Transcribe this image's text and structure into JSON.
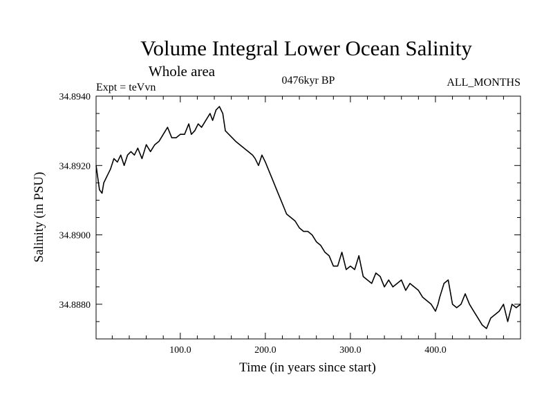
{
  "chart_data": {
    "type": "line",
    "title": "Volume Integral Lower Ocean Salinity",
    "subtitle": "Whole area",
    "expt_label": "Expt = teVvn",
    "period_label": "0476kyr BP",
    "months_label": "ALL_MONTHS",
    "xlabel": "Time (in years since start)",
    "ylabel": "Salinity (in PSU)",
    "xlim": [
      1,
      500
    ],
    "ylim": [
      34.887,
      34.894
    ],
    "x_tick_values": [
      100,
      200,
      300,
      400
    ],
    "x_tick_labels": [
      "100.0",
      "200.0",
      "300.0",
      "400.0"
    ],
    "y_tick_values": [
      34.894,
      34.892,
      34.89,
      34.888
    ],
    "y_tick_labels": [
      "34.8940",
      "34.8920",
      "34.8900",
      "34.8880"
    ],
    "grid": false,
    "series": [
      {
        "x": [
          1,
          5,
          8,
          10,
          14,
          18,
          22,
          26,
          30,
          34,
          38,
          42,
          46,
          50,
          55,
          60,
          65,
          70,
          75,
          80,
          85,
          90,
          95,
          100,
          105,
          110,
          113,
          117,
          121,
          125,
          130,
          135,
          138,
          142,
          146,
          150,
          153,
          157,
          161,
          165,
          170,
          175,
          180,
          185,
          188,
          192,
          196,
          200,
          205,
          210,
          215,
          220,
          225,
          230,
          235,
          240,
          245,
          250,
          255,
          260,
          265,
          270,
          275,
          280,
          285,
          290,
          295,
          300,
          305,
          310,
          315,
          320,
          325,
          330,
          335,
          340,
          345,
          350,
          355,
          360,
          365,
          370,
          375,
          380,
          385,
          390,
          395,
          400,
          403,
          405,
          410,
          415,
          420,
          425,
          430,
          435,
          440,
          445,
          450,
          455,
          460,
          465,
          470,
          475,
          480,
          485,
          490,
          495,
          500
        ],
        "y": [
          34.892,
          34.8913,
          34.8912,
          34.8915,
          34.8917,
          34.8919,
          34.8922,
          34.8921,
          34.8923,
          34.892,
          34.8923,
          34.8924,
          34.8923,
          34.8925,
          34.8922,
          34.8926,
          34.8924,
          34.8926,
          34.8927,
          34.8929,
          34.8931,
          34.8928,
          34.8928,
          34.8929,
          34.8929,
          34.8932,
          34.8929,
          34.893,
          34.8932,
          34.8931,
          34.8933,
          34.8935,
          34.8933,
          34.8936,
          34.8937,
          34.8935,
          34.893,
          34.8929,
          34.8928,
          34.8927,
          34.8926,
          34.8925,
          34.8924,
          34.8923,
          34.8922,
          34.892,
          34.8923,
          34.8921,
          34.8918,
          34.8915,
          34.8912,
          34.8909,
          34.8906,
          34.8905,
          34.8904,
          34.8902,
          34.8901,
          34.8901,
          34.89,
          34.8898,
          34.8897,
          34.8895,
          34.8894,
          34.8891,
          34.8891,
          34.8895,
          34.889,
          34.8891,
          34.889,
          34.8894,
          34.8888,
          34.8887,
          34.8886,
          34.8889,
          34.8888,
          34.8885,
          34.8887,
          34.8885,
          34.8886,
          34.8887,
          34.8884,
          34.8886,
          34.8885,
          34.8884,
          34.8882,
          34.8881,
          34.888,
          34.8878,
          34.888,
          34.8882,
          34.8886,
          34.8887,
          34.888,
          34.8879,
          34.888,
          34.8883,
          34.888,
          34.8878,
          34.8876,
          34.8874,
          34.8873,
          34.8876,
          34.8877,
          34.8878,
          34.888,
          34.8875,
          34.888,
          34.8879,
          34.888
        ]
      }
    ]
  }
}
